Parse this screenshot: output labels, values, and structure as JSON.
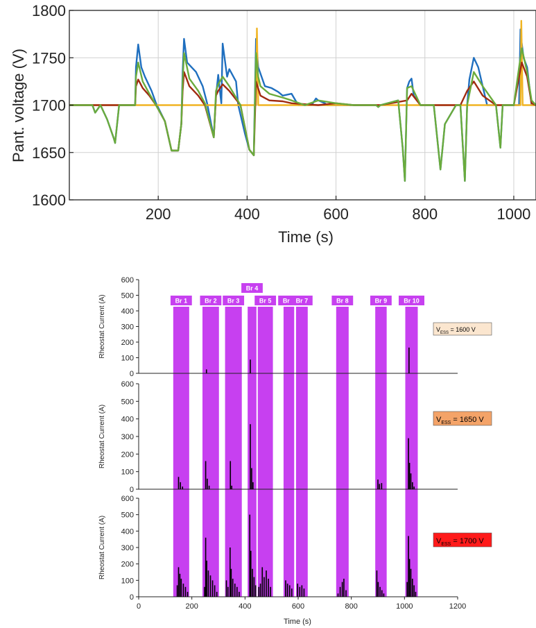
{
  "chart_data": [
    {
      "type": "line",
      "title": "",
      "xlabel": "Time (s)",
      "ylabel": "Pant. voltage (V)",
      "xlim": [
        0,
        1050
      ],
      "ylim": [
        1600,
        1800
      ],
      "xticks": [
        200,
        400,
        600,
        800,
        1000
      ],
      "yticks": [
        1600,
        1650,
        1700,
        1750,
        1800
      ],
      "grid": true,
      "series": [
        {
          "color": "#1f6fbf",
          "x": [
            0,
            40,
            52,
            58,
            70,
            85,
            100,
            103,
            112,
            140,
            148,
            150,
            155,
            162,
            170,
            185,
            195,
            215,
            230,
            245,
            252,
            255,
            258,
            265,
            275,
            285,
            300,
            310,
            325,
            330,
            335,
            340,
            342,
            345,
            355,
            360,
            375,
            380,
            395,
            405,
            415,
            420,
            425,
            440,
            455,
            470,
            480,
            500,
            515,
            530,
            545,
            555,
            560,
            575,
            580,
            595,
            610,
            625,
            640,
            670,
            690,
            695,
            700,
            740,
            750,
            755,
            760,
            765,
            770,
            775,
            790,
            800,
            820,
            835,
            845,
            870,
            880,
            890,
            895,
            900,
            910,
            920,
            940,
            960,
            970,
            975,
            1000,
            1008,
            1012,
            1015,
            1018,
            1022,
            1030,
            1040,
            1050
          ],
          "y": [
            1700,
            1700,
            1700,
            1692,
            1700,
            1685,
            1665,
            1660,
            1700,
            1700,
            1700,
            1740,
            1764,
            1740,
            1730,
            1715,
            1702,
            1683,
            1652,
            1652,
            1680,
            1735,
            1770,
            1745,
            1740,
            1735,
            1720,
            1702,
            1666,
            1710,
            1732,
            1710,
            1702,
            1765,
            1730,
            1738,
            1725,
            1700,
            1670,
            1653,
            1647,
            1770,
            1740,
            1720,
            1718,
            1714,
            1710,
            1712,
            1700,
            1700,
            1700,
            1707,
            1705,
            1702,
            1700,
            1700,
            1700,
            1700,
            1700,
            1700,
            1700,
            1698,
            1700,
            1705,
            1655,
            1620,
            1718,
            1725,
            1728,
            1710,
            1700,
            1700,
            1700,
            1632,
            1680,
            1700,
            1700,
            1620,
            1700,
            1727,
            1750,
            1740,
            1700,
            1700,
            1655,
            1700,
            1700,
            1700,
            1700,
            1780,
            1765,
            1750,
            1740,
            1700,
            1700
          ]
        },
        {
          "color": "#f0b422",
          "x": [
            0,
            415,
            420,
            422,
            425,
            1010,
            1015,
            1017,
            1020,
            1050
          ],
          "y": [
            1700,
            1700,
            1700,
            1781,
            1700,
            1700,
            1700,
            1789,
            1700,
            1700
          ]
        },
        {
          "color": "#a02a10",
          "x": [
            0,
            140,
            148,
            150,
            155,
            165,
            180,
            195,
            215,
            230,
            245,
            252,
            255,
            258,
            270,
            290,
            305,
            325,
            330,
            335,
            345,
            360,
            385,
            405,
            415,
            420,
            430,
            450,
            480,
            500,
            560,
            600,
            640,
            700,
            760,
            770,
            790,
            880,
            895,
            910,
            930,
            960,
            1000,
            1012,
            1018,
            1030,
            1040,
            1050
          ],
          "y": [
            1700,
            1700,
            1700,
            1720,
            1727,
            1718,
            1710,
            1700,
            1683,
            1652,
            1652,
            1680,
            1715,
            1735,
            1720,
            1710,
            1700,
            1666,
            1710,
            1715,
            1722,
            1715,
            1700,
            1653,
            1647,
            1725,
            1710,
            1705,
            1704,
            1702,
            1700,
            1702,
            1700,
            1700,
            1705,
            1712,
            1700,
            1700,
            1715,
            1725,
            1710,
            1700,
            1700,
            1730,
            1745,
            1730,
            1702,
            1700
          ]
        },
        {
          "color": "#6aab3c",
          "x": [
            0,
            40,
            52,
            58,
            70,
            85,
            100,
            103,
            112,
            140,
            148,
            150,
            155,
            165,
            180,
            195,
            215,
            230,
            245,
            252,
            255,
            258,
            270,
            290,
            305,
            325,
            330,
            335,
            345,
            360,
            385,
            405,
            415,
            420,
            425,
            430,
            450,
            480,
            500,
            530,
            560,
            600,
            640,
            670,
            690,
            695,
            700,
            740,
            750,
            755,
            760,
            770,
            790,
            800,
            820,
            835,
            845,
            870,
            880,
            890,
            895,
            910,
            930,
            960,
            970,
            975,
            1000,
            1012,
            1018,
            1030,
            1040,
            1050
          ],
          "y": [
            1700,
            1700,
            1700,
            1692,
            1700,
            1685,
            1665,
            1660,
            1700,
            1700,
            1700,
            1730,
            1745,
            1725,
            1712,
            1700,
            1683,
            1652,
            1652,
            1680,
            1725,
            1755,
            1728,
            1715,
            1702,
            1666,
            1715,
            1722,
            1730,
            1720,
            1700,
            1653,
            1647,
            1755,
            1730,
            1720,
            1712,
            1708,
            1705,
            1700,
            1705,
            1702,
            1700,
            1700,
            1700,
            1698,
            1700,
            1705,
            1655,
            1620,
            1718,
            1720,
            1700,
            1700,
            1700,
            1632,
            1680,
            1700,
            1700,
            1620,
            1700,
            1735,
            1720,
            1700,
            1655,
            1700,
            1700,
            1740,
            1760,
            1735,
            1705,
            1700
          ]
        }
      ]
    },
    {
      "type": "bar",
      "title": "",
      "xlabel": "Time (s)",
      "ylabel": "Rheostat Current (A)",
      "xlim": [
        0,
        1200
      ],
      "xticks": [
        0,
        200,
        400,
        600,
        800,
        1000,
        1200
      ],
      "braking_windows": [
        {
          "label": "Br 1",
          "start": 130,
          "end": 190
        },
        {
          "label": "Br 2",
          "start": 240,
          "end": 302
        },
        {
          "label": "Br 3",
          "start": 325,
          "end": 388
        },
        {
          "label": "Br 4",
          "start": 410,
          "end": 443
        },
        {
          "label": "Br 5",
          "start": 448,
          "end": 505
        },
        {
          "label": "Br 6",
          "start": 545,
          "end": 585
        },
        {
          "label": "Br 7",
          "start": 592,
          "end": 636
        },
        {
          "label": "Br 8",
          "start": 743,
          "end": 790
        },
        {
          "label": "Br 9",
          "start": 890,
          "end": 933
        },
        {
          "label": "Br 10",
          "start": 1003,
          "end": 1050
        }
      ],
      "panels": [
        {
          "label_prefix": "V",
          "label_sub": "ESS",
          "label_value": " = 1600 V",
          "label_color": "#fbe6cf",
          "ylim": [
            0,
            600
          ],
          "yticks": [
            0,
            100,
            200,
            300,
            400,
            500,
            600
          ],
          "spikes": [
            {
              "t": 255,
              "v": 25
            },
            {
              "t": 420,
              "v": 88
            },
            {
              "t": 1017,
              "v": 165
            }
          ]
        },
        {
          "label_prefix": "V",
          "label_sub": "ESS",
          "label_value": " = 1650 V",
          "label_color": "#f4a368",
          "ylim": [
            0,
            600
          ],
          "yticks": [
            0,
            100,
            200,
            300,
            400,
            500,
            600
          ],
          "spikes": [
            {
              "t": 150,
              "v": 70
            },
            {
              "t": 157,
              "v": 40
            },
            {
              "t": 165,
              "v": 15
            },
            {
              "t": 252,
              "v": 160
            },
            {
              "t": 258,
              "v": 60
            },
            {
              "t": 265,
              "v": 20
            },
            {
              "t": 345,
              "v": 160
            },
            {
              "t": 350,
              "v": 20
            },
            {
              "t": 420,
              "v": 370
            },
            {
              "t": 425,
              "v": 120
            },
            {
              "t": 430,
              "v": 40
            },
            {
              "t": 900,
              "v": 55
            },
            {
              "t": 906,
              "v": 30
            },
            {
              "t": 914,
              "v": 35
            },
            {
              "t": 1015,
              "v": 290
            },
            {
              "t": 1019,
              "v": 150
            },
            {
              "t": 1024,
              "v": 90
            },
            {
              "t": 1030,
              "v": 40
            },
            {
              "t": 1036,
              "v": 15
            }
          ]
        },
        {
          "label_prefix": "V",
          "label_sub": "ESS",
          "label_value": " = 1700 V",
          "label_color": "#ff1a1a",
          "ylim": [
            0,
            600
          ],
          "yticks": [
            0,
            100,
            200,
            300,
            400,
            500,
            600
          ],
          "spikes": [
            {
              "t": 145,
              "v": 70
            },
            {
              "t": 150,
              "v": 180
            },
            {
              "t": 155,
              "v": 140
            },
            {
              "t": 160,
              "v": 110
            },
            {
              "t": 168,
              "v": 80
            },
            {
              "t": 176,
              "v": 60
            },
            {
              "t": 184,
              "v": 30
            },
            {
              "t": 248,
              "v": 60
            },
            {
              "t": 252,
              "v": 360
            },
            {
              "t": 256,
              "v": 220
            },
            {
              "t": 262,
              "v": 160
            },
            {
              "t": 270,
              "v": 130
            },
            {
              "t": 278,
              "v": 100
            },
            {
              "t": 286,
              "v": 70
            },
            {
              "t": 294,
              "v": 30
            },
            {
              "t": 330,
              "v": 100
            },
            {
              "t": 336,
              "v": 60
            },
            {
              "t": 344,
              "v": 300
            },
            {
              "t": 348,
              "v": 170
            },
            {
              "t": 354,
              "v": 110
            },
            {
              "t": 362,
              "v": 80
            },
            {
              "t": 370,
              "v": 60
            },
            {
              "t": 378,
              "v": 30
            },
            {
              "t": 418,
              "v": 500
            },
            {
              "t": 422,
              "v": 280
            },
            {
              "t": 428,
              "v": 170
            },
            {
              "t": 434,
              "v": 120
            },
            {
              "t": 440,
              "v": 70
            },
            {
              "t": 452,
              "v": 60
            },
            {
              "t": 458,
              "v": 80
            },
            {
              "t": 465,
              "v": 180
            },
            {
              "t": 472,
              "v": 120
            },
            {
              "t": 480,
              "v": 160
            },
            {
              "t": 488,
              "v": 110
            },
            {
              "t": 496,
              "v": 60
            },
            {
              "t": 553,
              "v": 100
            },
            {
              "t": 560,
              "v": 80
            },
            {
              "t": 568,
              "v": 70
            },
            {
              "t": 576,
              "v": 50
            },
            {
              "t": 598,
              "v": 80
            },
            {
              "t": 606,
              "v": 60
            },
            {
              "t": 614,
              "v": 70
            },
            {
              "t": 622,
              "v": 50
            },
            {
              "t": 750,
              "v": 20
            },
            {
              "t": 758,
              "v": 60
            },
            {
              "t": 766,
              "v": 90
            },
            {
              "t": 772,
              "v": 110
            },
            {
              "t": 780,
              "v": 40
            },
            {
              "t": 896,
              "v": 160
            },
            {
              "t": 901,
              "v": 90
            },
            {
              "t": 908,
              "v": 60
            },
            {
              "t": 915,
              "v": 40
            },
            {
              "t": 922,
              "v": 20
            },
            {
              "t": 1010,
              "v": 90
            },
            {
              "t": 1015,
              "v": 370
            },
            {
              "t": 1019,
              "v": 230
            },
            {
              "t": 1024,
              "v": 170
            },
            {
              "t": 1030,
              "v": 110
            },
            {
              "t": 1036,
              "v": 70
            },
            {
              "t": 1042,
              "v": 30
            }
          ]
        }
      ]
    }
  ]
}
